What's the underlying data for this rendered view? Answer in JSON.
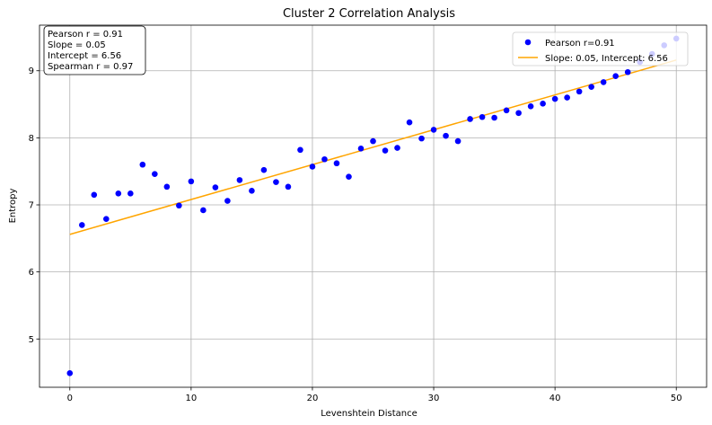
{
  "chart_data": {
    "type": "scatter",
    "title": "Cluster 2 Correlation Analysis",
    "xlabel": "Levenshtein Distance",
    "ylabel": "Entropy",
    "xlim": [
      -2.5,
      52.5
    ],
    "ylim": [
      4.28,
      9.68
    ],
    "xticks": [
      0,
      10,
      20,
      30,
      40,
      50
    ],
    "yticks": [
      5,
      6,
      7,
      8,
      9
    ],
    "grid": true,
    "legend_position": "top-right",
    "series": [
      {
        "name": "Pearson r=0.91",
        "kind": "scatter",
        "color": "#0000ff",
        "x": [
          0,
          1,
          2,
          3,
          4,
          5,
          6,
          7,
          8,
          9,
          10,
          11,
          12,
          13,
          14,
          15,
          16,
          17,
          18,
          19,
          20,
          21,
          22,
          23,
          24,
          25,
          26,
          27,
          28,
          29,
          30,
          31,
          32,
          33,
          34,
          35,
          36,
          37,
          38,
          39,
          40,
          41,
          42,
          43,
          44,
          45,
          46,
          47,
          48,
          49,
          50
        ],
        "y": [
          4.49,
          6.7,
          7.15,
          6.79,
          7.17,
          7.17,
          7.6,
          7.46,
          7.27,
          6.99,
          7.35,
          6.92,
          7.26,
          7.06,
          7.37,
          7.21,
          7.52,
          7.34,
          7.27,
          7.82,
          7.57,
          7.68,
          7.62,
          7.42,
          7.84,
          7.95,
          7.81,
          7.85,
          8.23,
          7.99,
          8.12,
          8.03,
          7.95,
          8.28,
          8.31,
          8.3,
          8.41,
          8.37,
          8.47,
          8.51,
          8.58,
          8.6,
          8.69,
          8.76,
          8.83,
          8.92,
          8.98,
          9.13,
          9.25,
          9.38,
          9.48
        ]
      },
      {
        "name": "Slope: 0.05, Intercept: 6.56",
        "kind": "line",
        "color": "#ffa500",
        "x": [
          0,
          50
        ],
        "y": [
          6.56,
          9.16
        ]
      }
    ],
    "annotation": {
      "lines": [
        "Pearson r = 0.91",
        "Slope = 0.05",
        "Intercept = 6.56",
        "Spearman r = 0.97"
      ]
    }
  }
}
